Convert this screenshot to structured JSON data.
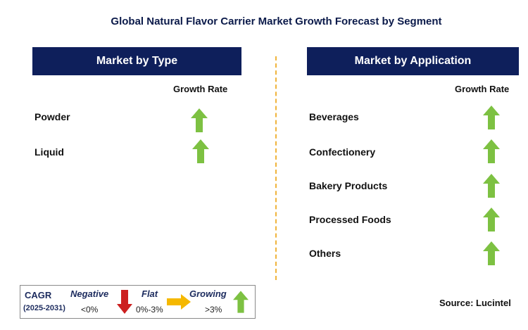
{
  "title": "Global Natural Flavor Carrier Market Growth Forecast by Segment",
  "left_panel": {
    "header": "Market by Type",
    "growth_label": "Growth Rate",
    "items": [
      {
        "label": "Powder",
        "trend": "growing"
      },
      {
        "label": "Liquid",
        "trend": "growing"
      }
    ]
  },
  "right_panel": {
    "header": "Market by Application",
    "growth_label": "Growth Rate",
    "items": [
      {
        "label": "Beverages",
        "trend": "growing"
      },
      {
        "label": "Confectionery",
        "trend": "growing"
      },
      {
        "label": "Bakery Products",
        "trend": "growing"
      },
      {
        "label": "Processed Foods",
        "trend": "growing"
      },
      {
        "label": "Others",
        "trend": "growing"
      }
    ]
  },
  "legend": {
    "cagr_label": "CAGR",
    "period": "(2025-2031)",
    "negative_label": "Negative",
    "negative_range": "<0%",
    "flat_label": "Flat",
    "flat_range": "0%-3%",
    "growing_label": "Growing",
    "growing_range": ">3%"
  },
  "source": "Source: Lucintel",
  "colors": {
    "header_bg": "#0e1f5b",
    "growing": "#7dc142",
    "negative": "#cc1f1f",
    "flat": "#f5b800",
    "divider": "#f0b43c"
  }
}
